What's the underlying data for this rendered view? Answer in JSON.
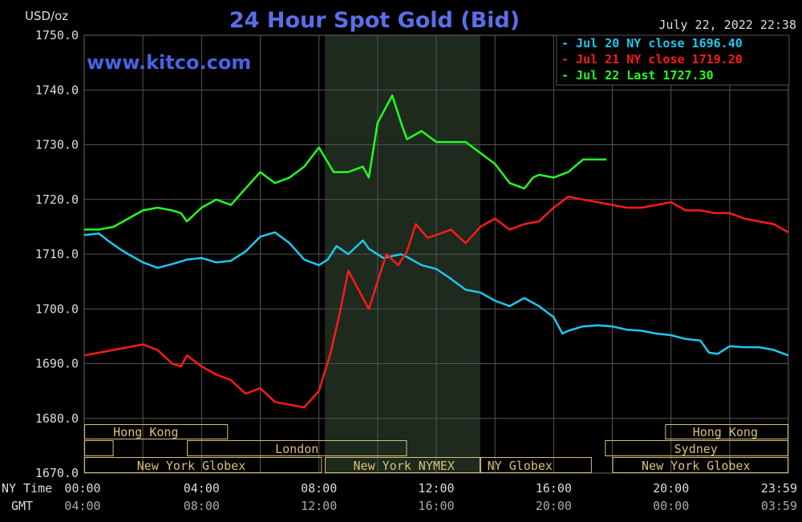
{
  "header": {
    "units": "USD/oz",
    "title": "24 Hour Spot Gold (Bid)",
    "timestamp": "July 22, 2022 22:38",
    "watermark": "www.kitco.com"
  },
  "axis": {
    "x_row1_label": "NY Time",
    "x_row2_label": "GMT"
  },
  "colors": {
    "background": "#000000",
    "grid": "#555555",
    "title": "#5b6ee8",
    "jul20": "#1ec8f0",
    "jul21": "#ff1a1a",
    "jul22": "#22ff22",
    "session_box": "#d8c078",
    "session_shade": "#1d2a1d"
  },
  "sessions": {
    "row1": [
      {
        "label": "Hong Kong",
        "start": 0,
        "end": 4.9,
        "text_at": 2.1
      },
      {
        "label": "Hong Kong",
        "start": 19.8,
        "end": 24,
        "text_at": 21.85
      }
    ],
    "row2": [
      {
        "label": "",
        "start": 0,
        "end": 1.0,
        "text_at": 0.5
      },
      {
        "label": "London",
        "start": 3.5,
        "end": 11.0,
        "text_at": 7.25
      },
      {
        "label": "Sydney",
        "start": 17.75,
        "end": 24,
        "text_at": 20.85
      }
    ],
    "row3": [
      {
        "label": "New York Globex",
        "start": 0,
        "end": 8.1,
        "text_at": 3.65
      },
      {
        "label": "New York NYMEX",
        "start": 8.2,
        "end": 13.5,
        "text_at": 10.9
      },
      {
        "label": "NY Globex",
        "start": 13.5,
        "end": 17.3,
        "text_at": 14.85
      },
      {
        "label": "New York Globex",
        "start": 18.0,
        "end": 24,
        "text_at": 20.85
      }
    ]
  },
  "chart_data": {
    "type": "line",
    "title": "24 Hour Spot Gold (Bid)",
    "ylabel": "USD/oz",
    "ylim": [
      1670,
      1750
    ],
    "xlim": [
      0,
      24
    ],
    "yticks": [
      "1750.0",
      "1740.0",
      "1730.0",
      "1720.0",
      "1710.0",
      "1700.0",
      "1690.0",
      "1680.0",
      "1670.0"
    ],
    "xticks_ny": [
      "00:00",
      "04:00",
      "08:00",
      "12:00",
      "16:00",
      "20:00",
      "23:59"
    ],
    "xticks_gmt": [
      "04:00",
      "08:00",
      "12:00",
      "16:00",
      "20:00",
      "00:00",
      "03:59"
    ],
    "shaded_range": [
      8.2,
      13.5
    ],
    "grid": true,
    "legend_position": "top-right",
    "series": [
      {
        "name": "Jul 20 NY close 1696.40",
        "color_key": "jul20",
        "x": [
          0,
          0.5,
          0.8,
          1.2,
          1.5,
          2.0,
          2.5,
          3.0,
          3.5,
          4.0,
          4.5,
          5.0,
          5.5,
          6.0,
          6.5,
          7.0,
          7.5,
          8.0,
          8.3,
          8.6,
          9.0,
          9.5,
          9.7,
          10.2,
          10.8,
          11.0,
          11.5,
          12.0,
          12.5,
          13.0,
          13.5,
          14.0,
          14.5,
          15.0,
          15.5,
          16.0,
          16.3,
          16.5,
          17.0,
          17.5,
          18.0,
          18.5,
          19.0,
          19.5,
          20.0,
          20.5,
          21.0,
          21.3,
          21.6,
          22.0,
          22.5,
          23.0,
          23.5,
          24.0
        ],
        "y": [
          1713.5,
          1713.8,
          1712.5,
          1711.0,
          1710.0,
          1708.5,
          1707.5,
          1708.2,
          1709.0,
          1709.3,
          1708.5,
          1708.8,
          1710.5,
          1713.2,
          1714.0,
          1712.0,
          1709.0,
          1708.0,
          1709.0,
          1711.5,
          1710.0,
          1712.5,
          1711.0,
          1709.3,
          1710.0,
          1709.5,
          1708.0,
          1707.3,
          1705.5,
          1703.5,
          1703.0,
          1701.5,
          1700.5,
          1702.0,
          1700.5,
          1698.5,
          1695.5,
          1696.0,
          1696.8,
          1697.0,
          1696.8,
          1696.2,
          1696.0,
          1695.5,
          1695.2,
          1694.5,
          1694.2,
          1692.0,
          1691.8,
          1693.2,
          1693.0,
          1693.0,
          1692.5,
          1691.5
        ]
      },
      {
        "name": "Jul 21 NY close 1719.20",
        "color_key": "jul21",
        "x": [
          0,
          0.5,
          1.0,
          1.5,
          2.0,
          2.5,
          3.0,
          3.3,
          3.5,
          4.0,
          4.5,
          5.0,
          5.5,
          6.0,
          6.5,
          7.0,
          7.5,
          8.0,
          8.4,
          8.7,
          9.0,
          9.3,
          9.7,
          10.0,
          10.3,
          10.7,
          11.0,
          11.3,
          11.7,
          12.0,
          12.5,
          13.0,
          13.5,
          14.0,
          14.5,
          15.0,
          15.5,
          16.0,
          16.5,
          17.0,
          17.5,
          18.0,
          18.5,
          19.0,
          19.5,
          20.0,
          20.5,
          21.0,
          21.5,
          22.0,
          22.5,
          23.0,
          23.5,
          24.0
        ],
        "y": [
          1691.5,
          1692.0,
          1692.5,
          1693.0,
          1693.5,
          1692.5,
          1690.0,
          1689.5,
          1691.5,
          1689.5,
          1688.0,
          1687.0,
          1684.5,
          1685.5,
          1683.0,
          1682.5,
          1682.0,
          1685.0,
          1692.0,
          1699.0,
          1707.0,
          1704.0,
          1700.0,
          1705.0,
          1710.0,
          1708.0,
          1710.5,
          1715.5,
          1713.0,
          1713.5,
          1714.5,
          1712.0,
          1715.0,
          1716.5,
          1714.5,
          1715.5,
          1716.0,
          1718.5,
          1720.5,
          1720.0,
          1719.5,
          1719.0,
          1718.5,
          1718.5,
          1719.0,
          1719.5,
          1718.0,
          1718.0,
          1717.5,
          1717.5,
          1716.5,
          1716.0,
          1715.5,
          1714.0
        ]
      },
      {
        "name": "Jul 22 Last 1727.30",
        "color_key": "jul22",
        "x": [
          0,
          0.5,
          1.0,
          1.5,
          2.0,
          2.5,
          3.0,
          3.3,
          3.5,
          4.0,
          4.5,
          5.0,
          5.5,
          6.0,
          6.5,
          7.0,
          7.5,
          8.0,
          8.5,
          9.0,
          9.5,
          9.7,
          10.0,
          10.3,
          10.5,
          10.8,
          11.0,
          11.5,
          12.0,
          12.5,
          13.0,
          13.5,
          14.0,
          14.5,
          15.0,
          15.3,
          15.5,
          16.0,
          16.5,
          17.0,
          17.5,
          17.8
        ],
        "y": [
          1714.5,
          1714.5,
          1715.0,
          1716.5,
          1718.0,
          1718.5,
          1718.0,
          1717.5,
          1716.0,
          1718.5,
          1720.0,
          1719.0,
          1722.0,
          1725.0,
          1723.0,
          1724.0,
          1726.0,
          1729.5,
          1725.0,
          1725.0,
          1726.0,
          1724.0,
          1734.0,
          1737.0,
          1739.0,
          1734.0,
          1731.0,
          1732.5,
          1730.5,
          1730.5,
          1730.5,
          1728.5,
          1726.5,
          1723.0,
          1722.0,
          1724.0,
          1724.5,
          1724.0,
          1725.0,
          1727.3,
          1727.3,
          1727.3
        ]
      }
    ]
  }
}
